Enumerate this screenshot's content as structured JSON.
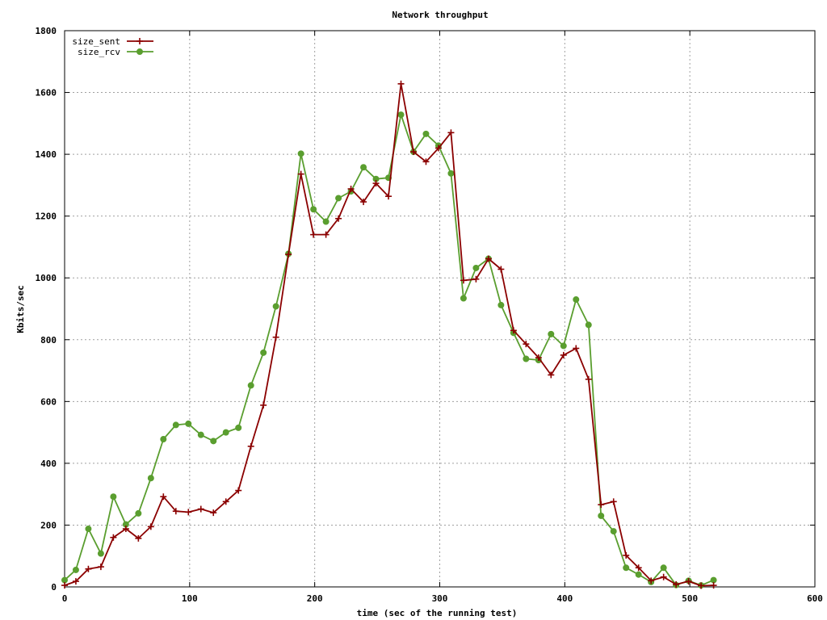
{
  "chart_data": {
    "type": "line",
    "title": "Network throughput",
    "xlabel": "time (sec of the running test)",
    "ylabel": "Kbits/sec",
    "xlim": [
      0,
      600
    ],
    "ylim": [
      0,
      1800
    ],
    "xticks": [
      0,
      100,
      200,
      300,
      400,
      500,
      600
    ],
    "yticks": [
      0,
      200,
      400,
      600,
      800,
      1000,
      1200,
      1400,
      1600,
      1800
    ],
    "grid": true,
    "legend_position": "top-left",
    "series": [
      {
        "name": "size_sent",
        "color": "#8b0000",
        "marker": "plus",
        "x": [
          0,
          9,
          19,
          29,
          39,
          49,
          59,
          69,
          79,
          89,
          99,
          109,
          119,
          129,
          139,
          149,
          159,
          169,
          179,
          189,
          199,
          209,
          219,
          229,
          239,
          249,
          259,
          269,
          279,
          289,
          299,
          309,
          319,
          329,
          339,
          349,
          359,
          369,
          379,
          389,
          399,
          409,
          419,
          429,
          439,
          449,
          459,
          469,
          479,
          489,
          499,
          509,
          519
        ],
        "y": [
          5,
          18,
          58,
          65,
          160,
          188,
          157,
          195,
          292,
          245,
          242,
          252,
          240,
          276,
          312,
          455,
          588,
          808,
          1076,
          1336,
          1140,
          1140,
          1192,
          1288,
          1246,
          1306,
          1264,
          1628,
          1408,
          1376,
          1420,
          1470,
          992,
          996,
          1062,
          1028,
          830,
          786,
          742,
          686,
          750,
          772,
          672,
          266,
          276,
          102,
          62,
          20,
          32,
          8,
          18,
          4,
          5
        ]
      },
      {
        "name": "size_rcv",
        "color": "#5a9e2f",
        "marker": "circle",
        "x": [
          0,
          9,
          19,
          29,
          39,
          49,
          59,
          69,
          79,
          89,
          99,
          109,
          119,
          129,
          139,
          149,
          159,
          169,
          179,
          189,
          199,
          209,
          219,
          229,
          239,
          249,
          259,
          269,
          279,
          289,
          299,
          309,
          319,
          329,
          339,
          349,
          359,
          369,
          379,
          389,
          399,
          409,
          419,
          429,
          439,
          449,
          459,
          469,
          479,
          489,
          499,
          509,
          519
        ],
        "y": [
          22,
          55,
          188,
          108,
          292,
          202,
          238,
          352,
          478,
          524,
          528,
          492,
          472,
          500,
          515,
          652,
          758,
          908,
          1078,
          1402,
          1222,
          1182,
          1258,
          1280,
          1358,
          1320,
          1324,
          1528,
          1408,
          1466,
          1428,
          1338,
          934,
          1032,
          1062,
          912,
          822,
          738,
          734,
          818,
          780,
          930,
          848,
          230,
          180,
          62,
          40,
          16,
          62,
          6,
          20,
          5,
          22
        ]
      }
    ]
  }
}
